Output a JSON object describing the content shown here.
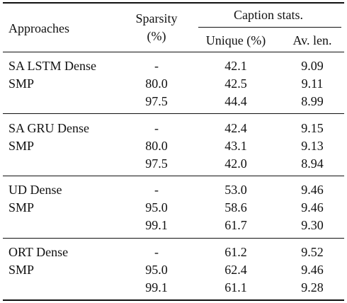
{
  "header": {
    "approaches": "Approaches",
    "sparsity_line1": "Sparsity",
    "sparsity_line2": "(%)",
    "caption_stats": "Caption stats.",
    "unique": "Unique (%)",
    "avg_len": "Av. len."
  },
  "groups": [
    {
      "rows": [
        {
          "approach": "SA LSTM Dense",
          "sparsity": "-",
          "unique": "42.1",
          "avlen": "9.09"
        },
        {
          "approach": "SMP",
          "sparsity": "80.0",
          "unique": "42.5",
          "avlen": "9.11"
        },
        {
          "approach": "",
          "sparsity": "97.5",
          "unique": "44.4",
          "avlen": "8.99"
        }
      ]
    },
    {
      "rows": [
        {
          "approach": "SA GRU Dense",
          "sparsity": "-",
          "unique": "42.4",
          "avlen": "9.15"
        },
        {
          "approach": "SMP",
          "sparsity": "80.0",
          "unique": "43.1",
          "avlen": "9.13"
        },
        {
          "approach": "",
          "sparsity": "97.5",
          "unique": "42.0",
          "avlen": "8.94"
        }
      ]
    },
    {
      "rows": [
        {
          "approach": "UD Dense",
          "sparsity": "-",
          "unique": "53.0",
          "avlen": "9.46"
        },
        {
          "approach": "SMP",
          "sparsity": "95.0",
          "unique": "58.6",
          "avlen": "9.46"
        },
        {
          "approach": "",
          "sparsity": "99.1",
          "unique": "61.7",
          "avlen": "9.30"
        }
      ]
    },
    {
      "rows": [
        {
          "approach": "ORT Dense",
          "sparsity": "-",
          "unique": "61.2",
          "avlen": "9.52"
        },
        {
          "approach": "SMP",
          "sparsity": "95.0",
          "unique": "62.4",
          "avlen": "9.46"
        },
        {
          "approach": "",
          "sparsity": "99.1",
          "unique": "61.1",
          "avlen": "9.28"
        }
      ]
    }
  ]
}
